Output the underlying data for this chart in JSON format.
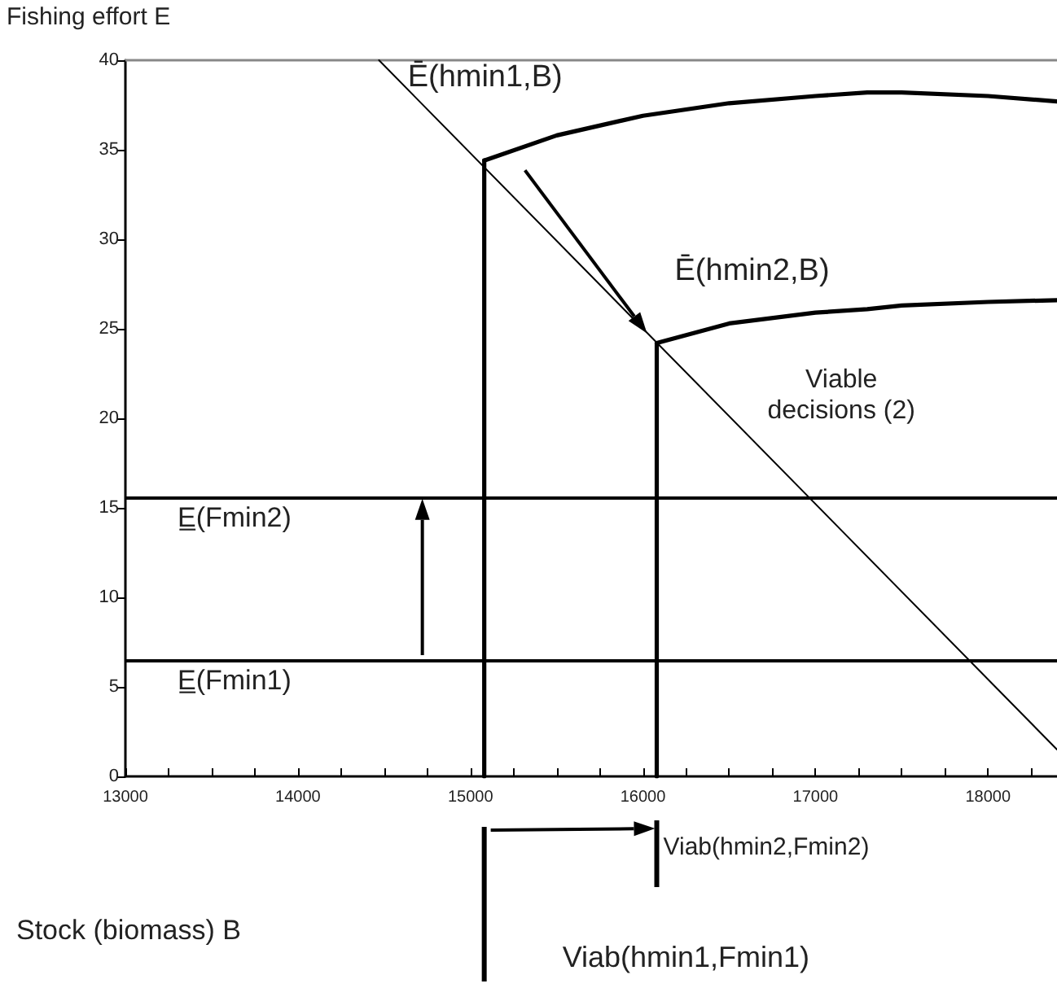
{
  "chart_data": {
    "type": "line",
    "xlabel": "Stock (biomass) B",
    "ylabel": "Fishing effort E",
    "xlim": [
      13000,
      18400
    ],
    "xticks": [
      13000,
      14000,
      15000,
      16000,
      17000,
      18000
    ],
    "ylim": [
      0,
      40
    ],
    "yticks": [
      0,
      5,
      10,
      15,
      20,
      25,
      30,
      35,
      40
    ],
    "grid": false,
    "marker": "none",
    "line_style": "solid",
    "series": [
      {
        "color": "#000000",
        "x": [
          14470,
          18400
        ],
        "values": [
          40,
          1.5
        ]
      },
      {
        "color": "#000000",
        "x": [
          15080,
          15500,
          16000,
          16500,
          17000,
          17300,
          17500,
          18000,
          18400
        ],
        "values": [
          34.4,
          35.8,
          36.9,
          37.6,
          38.0,
          38.2,
          38.2,
          38.0,
          37.7
        ]
      },
      {
        "color": "#000000",
        "x": [
          16080,
          16500,
          17000,
          17300,
          17500,
          18000,
          18400
        ],
        "values": [
          24.2,
          25.3,
          25.9,
          26.1,
          26.3,
          26.5,
          26.6
        ]
      },
      {
        "color": "#000000",
        "x": [
          15080,
          15080
        ],
        "values": [
          0,
          34.4
        ]
      },
      {
        "color": "#000000",
        "x": [
          16080,
          16080
        ],
        "values": [
          0,
          24.2
        ]
      }
    ],
    "ref_lines": [
      {
        "axis": "y",
        "value": 6.5,
        "label": "E̲(Fmin1)",
        "color": "#000000"
      },
      {
        "axis": "y",
        "value": 15.6,
        "label": "E̲(Fmin2)",
        "color": "#000000"
      }
    ],
    "annotations": [
      "Ē(hmin1,B)",
      "Ē(hmin2,B)",
      "Viable\ndecisions (2)",
      "Viab(hmin2,Fmin2)",
      "Viab(hmin1,Fmin1)"
    ]
  }
}
